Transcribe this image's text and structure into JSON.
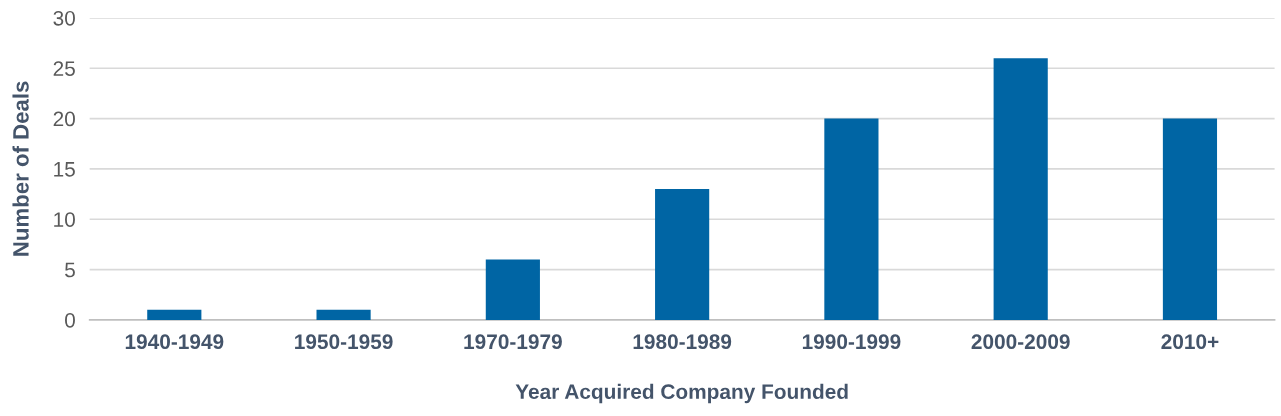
{
  "chart_data": {
    "type": "bar",
    "xlabel": "Year Acquired Company Founded",
    "ylabel": "Number of Deals",
    "categories": [
      "1940-1949",
      "1950-1959",
      "1970-1979",
      "1980-1989",
      "1990-1999",
      "2000-2009",
      "2010+"
    ],
    "values": [
      1,
      1,
      6,
      13,
      20,
      26,
      20
    ],
    "color": "#0065a4",
    "ylim": [
      0,
      30
    ],
    "yticks": [
      0,
      5,
      10,
      15,
      20,
      25,
      30
    ],
    "grid": "y",
    "legend": false
  }
}
